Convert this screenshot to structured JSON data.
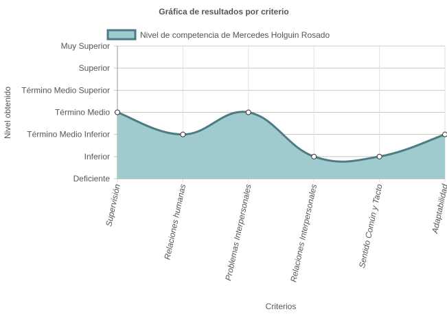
{
  "chart_data": {
    "type": "area",
    "title": "Gráfica de resultados por criterio",
    "xlabel": "Criterios",
    "ylabel": "Nivel obtenido",
    "categories": [
      "Supervisión",
      "Relaciones humanas",
      "Problemas Interpersonales",
      "Relaciones Interpersonales",
      "Sentido Común y Tacto",
      "Adaptabilidad"
    ],
    "y_levels": [
      "Deficiente",
      "Inferior",
      "Término Medio Inferior",
      "Término Medio",
      "Término Medio Superior",
      "Superior",
      "Muy Superior"
    ],
    "ylim": [
      0,
      6
    ],
    "series": [
      {
        "name": "Nivel de competencia de Mercedes Holguin Rosado",
        "values": [
          3,
          2,
          3,
          1,
          1,
          2
        ],
        "value_labels": [
          "Término Medio",
          "Término Medio Inferior",
          "Término Medio",
          "Inferior",
          "Inferior",
          "Término Medio Inferior"
        ]
      }
    ],
    "grid": true,
    "legend_position": "top",
    "colors": {
      "fill": "#9fcbce",
      "line": "#4e7b81",
      "grid": "#dddddd",
      "axis": "#999999"
    }
  }
}
